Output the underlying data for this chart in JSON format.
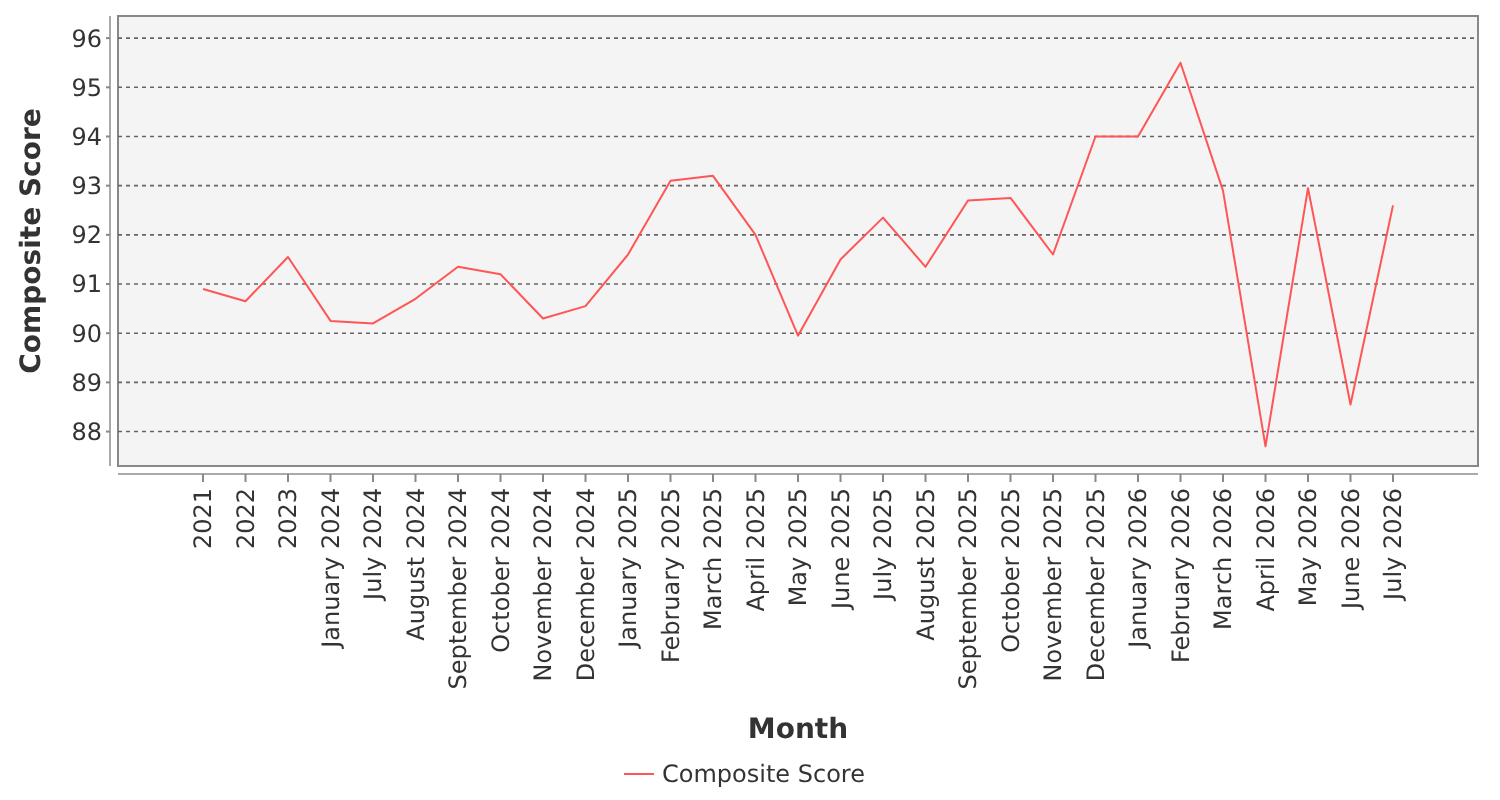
{
  "chart_data": {
    "type": "line",
    "xlabel": "Month",
    "ylabel": "Composite Score",
    "categories": [
      "2021",
      "2022",
      "2023",
      "January 2024",
      "July 2024",
      "August 2024",
      "September 2024",
      "October 2024",
      "November 2024",
      "December 2024",
      "January 2025",
      "February 2025",
      "March 2025",
      "April 2025",
      "May 2025",
      "June 2025",
      "July 2025",
      "August 2025",
      "September 2025",
      "October 2025",
      "November 2025",
      "December 2025",
      "January 2026",
      "February 2026",
      "March 2026",
      "April 2026",
      "May 2026",
      "June 2026",
      "July 2026"
    ],
    "series": [
      {
        "name": "Composite Score",
        "color": "#ff5555",
        "values": [
          90.9,
          90.65,
          91.55,
          90.25,
          90.2,
          90.7,
          91.35,
          91.2,
          90.3,
          90.55,
          91.6,
          93.1,
          93.2,
          92.0,
          89.95,
          91.5,
          92.35,
          91.35,
          92.7,
          92.75,
          91.6,
          94.0,
          94.0,
          95.5,
          92.9,
          87.7,
          92.95,
          88.55,
          92.6
        ]
      }
    ],
    "ylim": [
      87.3,
      96.45
    ],
    "yticks": [
      88,
      89,
      90,
      91,
      92,
      93,
      94,
      95,
      96
    ],
    "grid": "y",
    "legend": "bottom",
    "marker": "none",
    "line_style": "solid"
  }
}
